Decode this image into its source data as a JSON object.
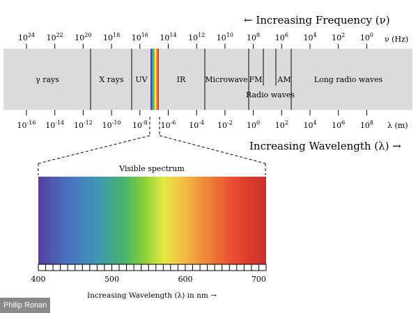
{
  "header": {
    "frequency_title": "← Increasing Frequency (ν)",
    "wavelength_title": "Increasing Wavelength (λ) →"
  },
  "frequency_scale": {
    "unit": "ν (Hz)",
    "ticks": [
      {
        "base": "10",
        "exp": "24"
      },
      {
        "base": "10",
        "exp": "22"
      },
      {
        "base": "10",
        "exp": "20"
      },
      {
        "base": "10",
        "exp": "18"
      },
      {
        "base": "10",
        "exp": "16"
      },
      {
        "base": "10",
        "exp": "14"
      },
      {
        "base": "10",
        "exp": "12"
      },
      {
        "base": "10",
        "exp": "10"
      },
      {
        "base": "10",
        "exp": "8"
      },
      {
        "base": "10",
        "exp": "6"
      },
      {
        "base": "10",
        "exp": "4"
      },
      {
        "base": "10",
        "exp": "2"
      },
      {
        "base": "10",
        "exp": "0"
      }
    ]
  },
  "wavelength_scale": {
    "unit": "λ (m)",
    "ticks": [
      {
        "base": "10",
        "exp": "-16"
      },
      {
        "base": "10",
        "exp": "-14"
      },
      {
        "base": "10",
        "exp": "-12"
      },
      {
        "base": "10",
        "exp": "-10"
      },
      {
        "base": "10",
        "exp": "-8"
      },
      {
        "base": "10",
        "exp": "-6"
      },
      {
        "base": "10",
        "exp": "-4"
      },
      {
        "base": "10",
        "exp": "-2"
      },
      {
        "base": "10",
        "exp": "0"
      },
      {
        "base": "10",
        "exp": "2"
      },
      {
        "base": "10",
        "exp": "4"
      },
      {
        "base": "10",
        "exp": "6"
      },
      {
        "base": "10",
        "exp": "8"
      }
    ]
  },
  "bands": {
    "gamma": "γ rays",
    "xray": "X rays",
    "uv": "UV",
    "ir": "IR",
    "microwave": "Microwave",
    "fm": "FM",
    "am": "AM",
    "radio": "Radio waves",
    "long_radio": "Long radio waves"
  },
  "visible": {
    "title": "Visible spectrum",
    "axis_label": "Increasing Wavelength (λ) in nm →",
    "ticks": [
      "400",
      "500",
      "600",
      "700"
    ]
  },
  "colors": {
    "band_fill": "#dcdcdc",
    "violet": "#5b3fa6",
    "blue": "#4a8ad0",
    "green": "#6cc43a",
    "yellow": "#f2ee4f",
    "orange": "#f29a3a",
    "red": "#e9302c"
  },
  "credit": "Philip Ronan"
}
